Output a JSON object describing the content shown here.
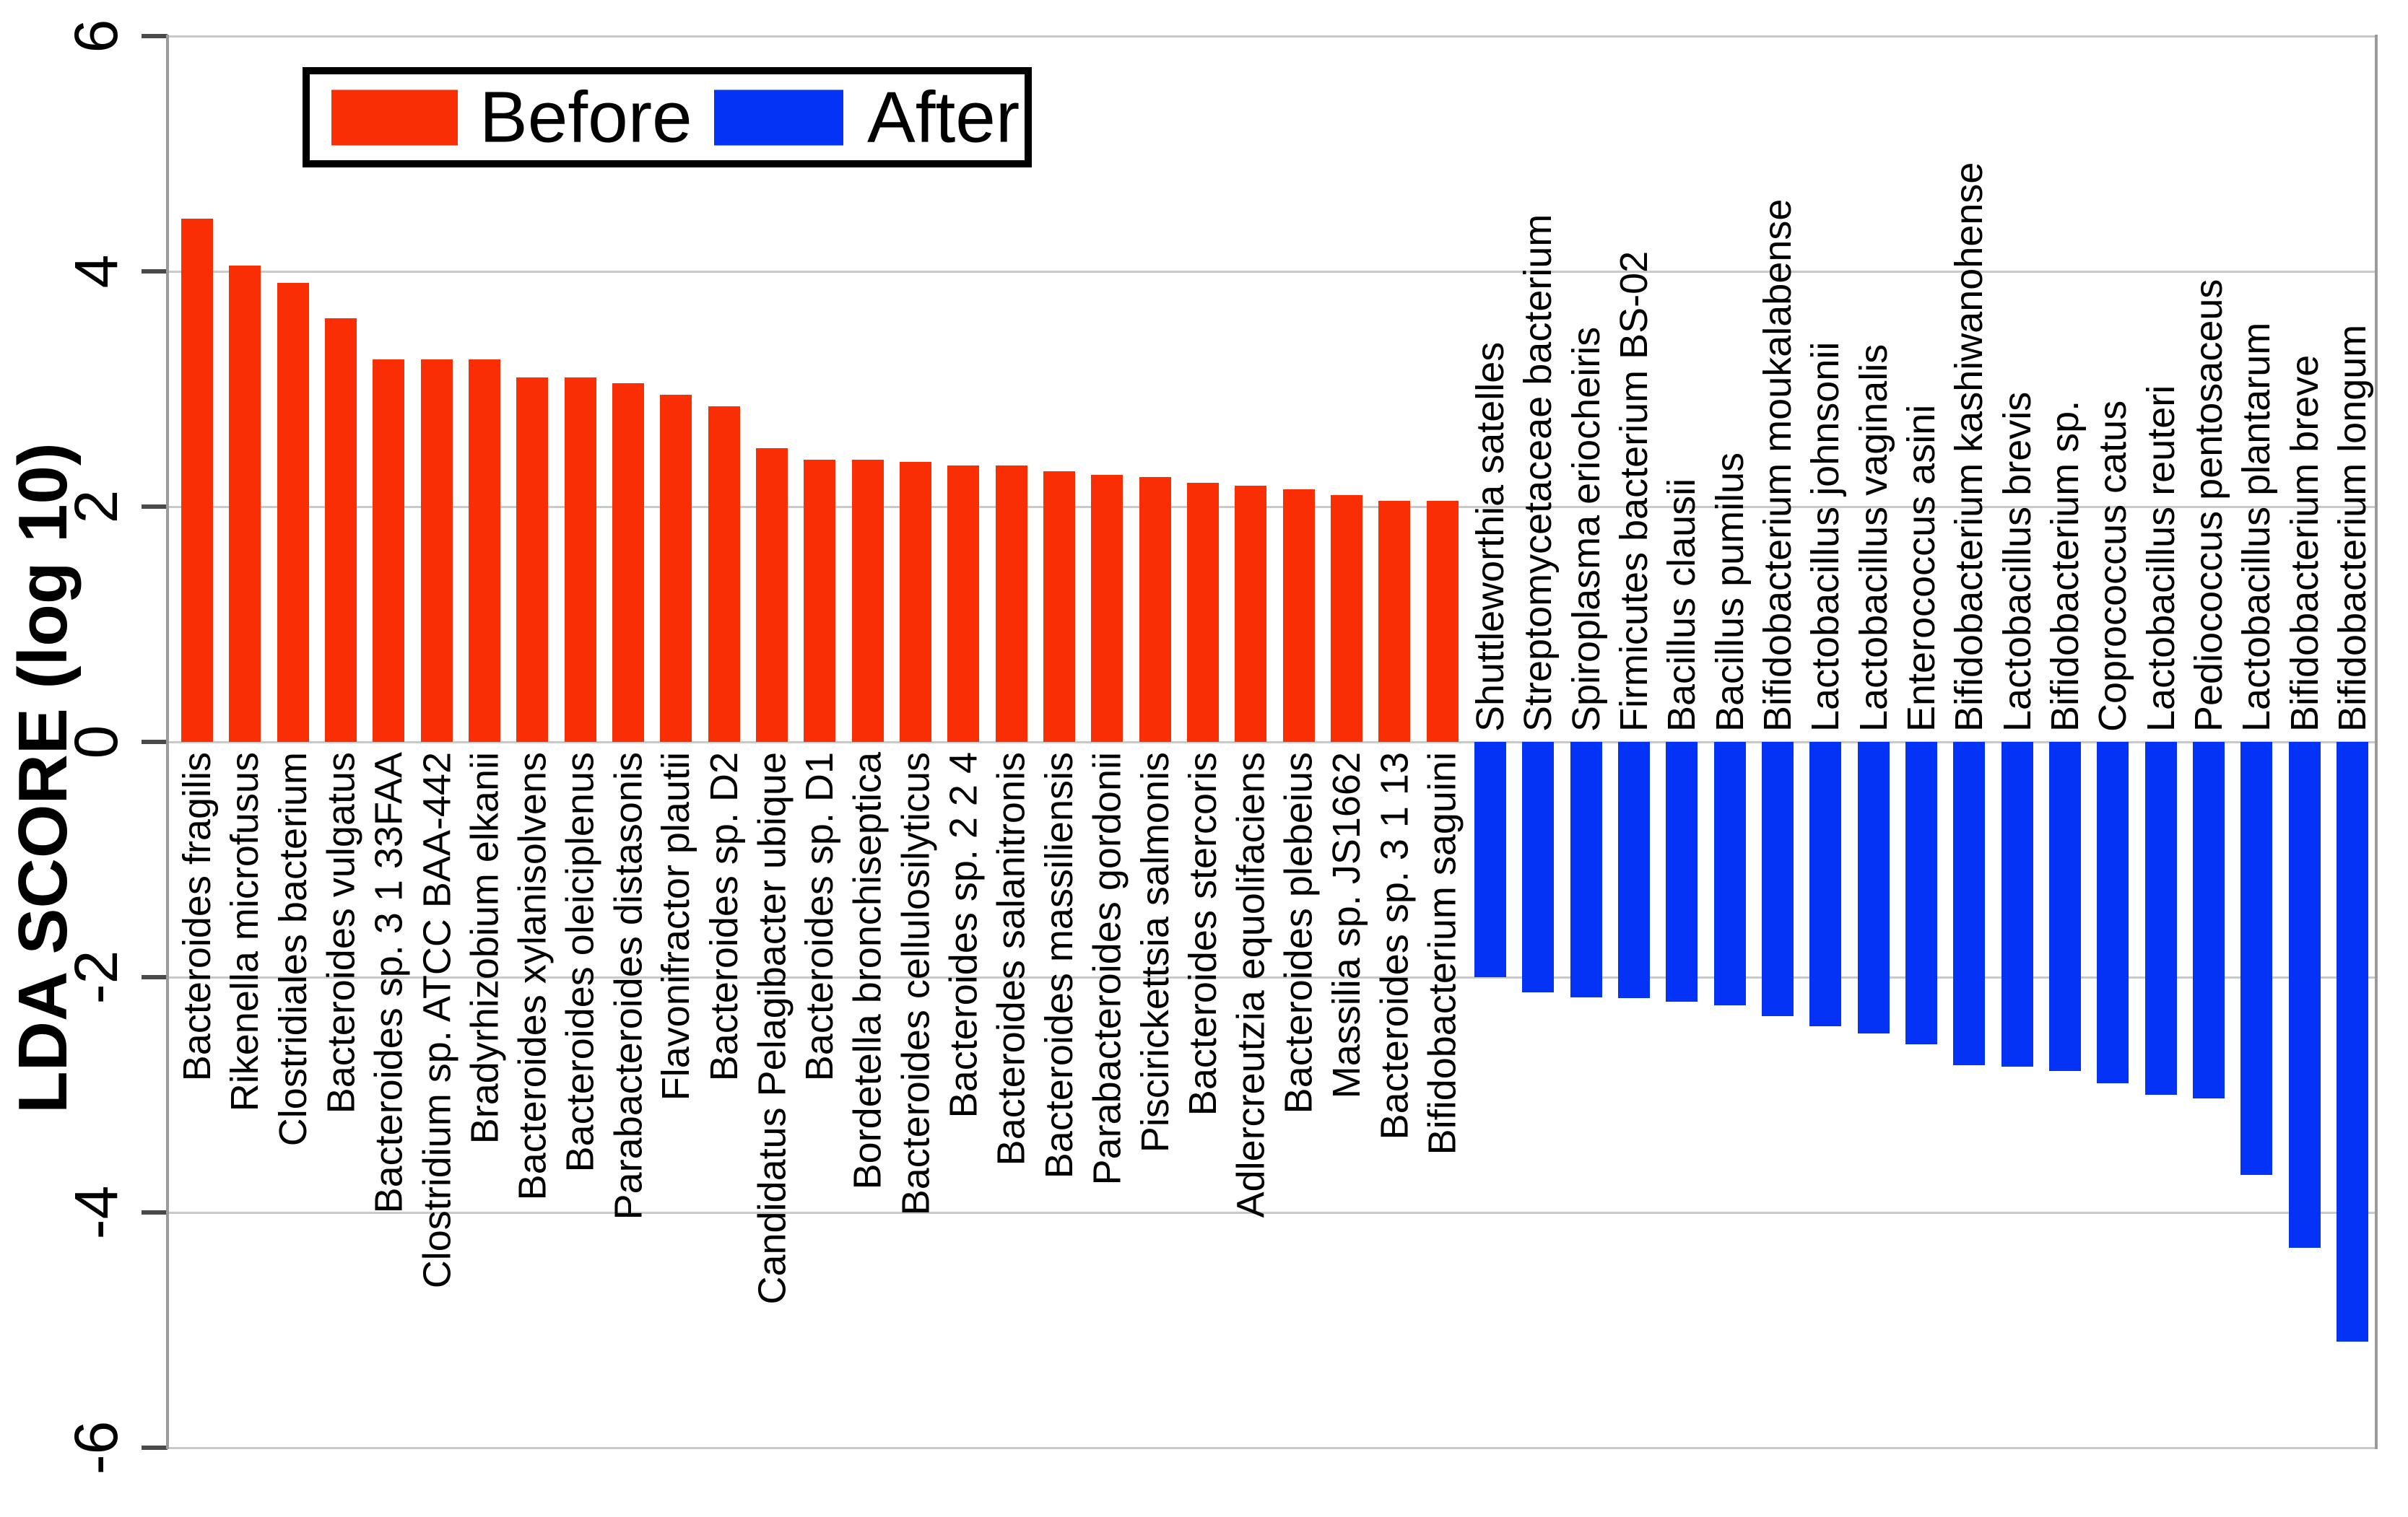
{
  "y_axis": {
    "title": "LDA SCORE (log 10)",
    "tick_labels": [
      "6",
      "4",
      "2",
      "0",
      "-2",
      "-4",
      "-6"
    ],
    "tick_values": [
      6,
      4,
      2,
      0,
      -2,
      -4,
      -6
    ],
    "range": [
      -6,
      6
    ]
  },
  "legend": {
    "items": [
      {
        "label": "Before",
        "color": "#fa2e05"
      },
      {
        "label": "After",
        "color": "#0533f5"
      }
    ]
  },
  "chart_data": {
    "type": "bar",
    "orientation": "vertical",
    "title": "",
    "xlabel": "",
    "ylabel": "LDA SCORE (log 10)",
    "ylim": [
      -6,
      6
    ],
    "yticks": [
      6,
      4,
      2,
      0,
      -2,
      -4,
      -6
    ],
    "grid": true,
    "legend_position": "top-left-inside",
    "series": [
      {
        "name": "Before",
        "color": "#fa2e05",
        "points": [
          {
            "label": "Bacteroides fragilis",
            "value": 4.45
          },
          {
            "label": "Rikenella microfusus",
            "value": 4.05
          },
          {
            "label": "Clostridiales bacterium",
            "value": 3.9
          },
          {
            "label": "Bacteroides vulgatus",
            "value": 3.6
          },
          {
            "label": "Bacteroides sp. 3 1 33FAA",
            "value": 3.25
          },
          {
            "label": "Clostridium sp. ATCC BAA-442",
            "value": 3.25
          },
          {
            "label": "Bradyrhizobium elkanii",
            "value": 3.25
          },
          {
            "label": "Bacteroides xylanisolvens",
            "value": 3.1
          },
          {
            "label": "Bacteroides oleiciplenus",
            "value": 3.1
          },
          {
            "label": "Parabacteroides distasonis",
            "value": 3.05
          },
          {
            "label": "Flavonifractor plautii",
            "value": 2.95
          },
          {
            "label": "Bacteroides sp. D2",
            "value": 2.85
          },
          {
            "label": "Candidatus Pelagibacter ubique",
            "value": 2.5
          },
          {
            "label": "Bacteroides sp. D1",
            "value": 2.4
          },
          {
            "label": "Bordetella bronchiseptica",
            "value": 2.4
          },
          {
            "label": "Bacteroides cellulosilyticus",
            "value": 2.38
          },
          {
            "label": "Bacteroides sp. 2 2 4",
            "value": 2.35
          },
          {
            "label": "Bacteroides salanitronis",
            "value": 2.35
          },
          {
            "label": "Bacteroides massiliensis",
            "value": 2.3
          },
          {
            "label": "Parabacteroides gordonii",
            "value": 2.27
          },
          {
            "label": "Piscirickettsia salmonis",
            "value": 2.25
          },
          {
            "label": "Bacteroides stercoris",
            "value": 2.2
          },
          {
            "label": "Adlercreutzia equolifaciens",
            "value": 2.18
          },
          {
            "label": "Bacteroides plebeius",
            "value": 2.15
          },
          {
            "label": "Massilia sp. JS1662",
            "value": 2.1
          },
          {
            "label": "Bacteroides sp. 3 1 13",
            "value": 2.05
          },
          {
            "label": "Bifidobacterium saguini",
            "value": 2.05
          }
        ]
      },
      {
        "name": "After",
        "color": "#0533f5",
        "points": [
          {
            "label": "Shuttleworthia satelles",
            "value": -2.0
          },
          {
            "label": "Streptomycetaceae bacterium",
            "value": -2.13
          },
          {
            "label": "Spiroplasma eriocheiris",
            "value": -2.17
          },
          {
            "label": "Firmicutes bacterium BS-02",
            "value": -2.18
          },
          {
            "label": "Bacillus clausii",
            "value": -2.21
          },
          {
            "label": "Bacillus pumilus",
            "value": -2.24
          },
          {
            "label": "Bifidobacterium moukalabense",
            "value": -2.33
          },
          {
            "label": "Lactobacillus johnsonii",
            "value": -2.42
          },
          {
            "label": "Lactobacillus vaginalis",
            "value": -2.48
          },
          {
            "label": "Enterococcus asini",
            "value": -2.57
          },
          {
            "label": "Bifidobacterium kashiwanohense",
            "value": -2.75
          },
          {
            "label": "Lactobacillus brevis",
            "value": -2.76
          },
          {
            "label": "Bifidobacterium sp.",
            "value": -2.8
          },
          {
            "label": "Coprococcus catus",
            "value": -2.9
          },
          {
            "label": "Lactobacillus reuteri",
            "value": -3.0
          },
          {
            "label": "Pediococcus pentosaceus",
            "value": -3.03
          },
          {
            "label": "Lactobacillus plantarum",
            "value": -3.68
          },
          {
            "label": "Bifidobacterium breve",
            "value": -4.3
          },
          {
            "label": "Bifidobacterium longum",
            "value": -5.1
          }
        ]
      }
    ]
  }
}
